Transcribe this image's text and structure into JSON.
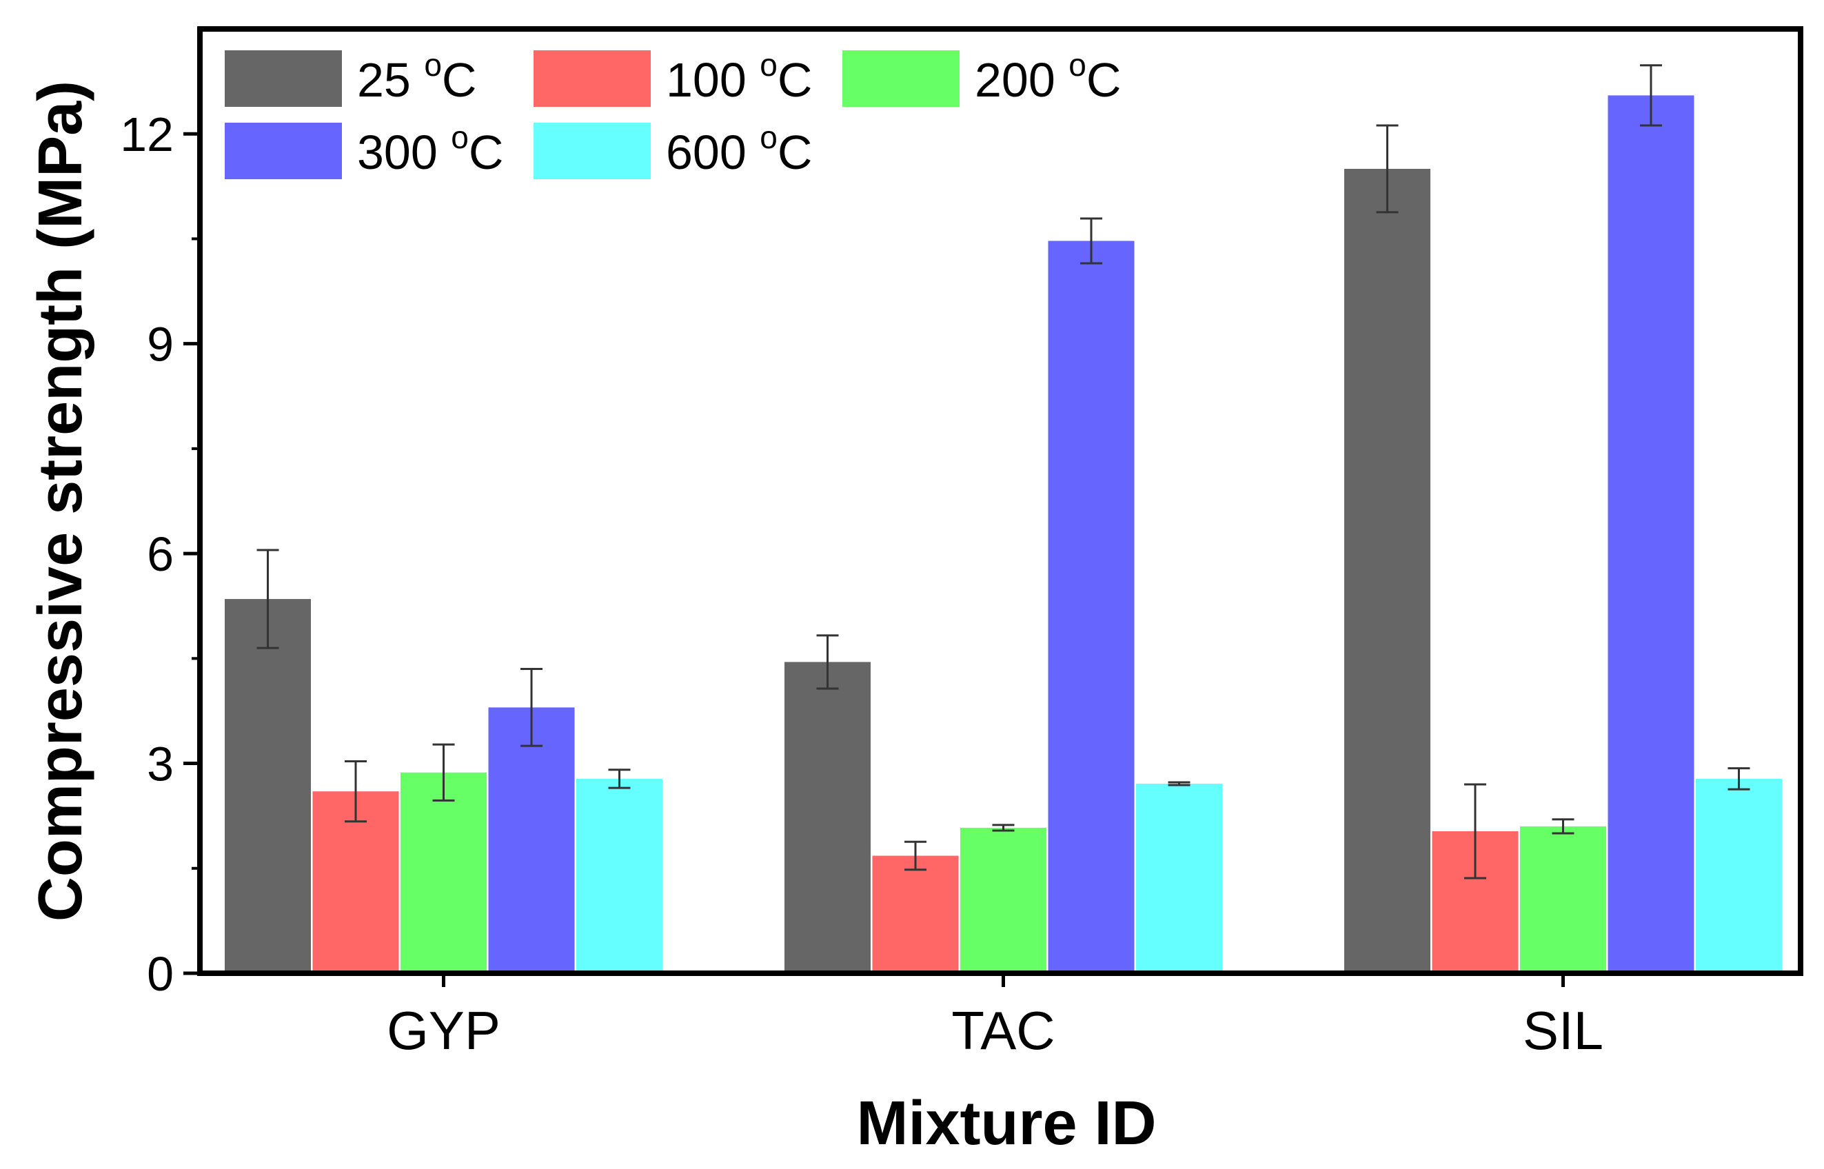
{
  "chart_data": {
    "type": "bar",
    "title": "",
    "xlabel": "Mixture ID",
    "ylabel": "Compressive strength (MPa)",
    "ylim": [
      0,
      13.5
    ],
    "yticks": [
      0,
      3,
      6,
      9,
      12
    ],
    "grid": false,
    "legend_position": "top-left",
    "categories": [
      "GYP",
      "TAC",
      "SIL"
    ],
    "series": [
      {
        "name": "25 °C",
        "label_base": "25 ",
        "label_sup": "o",
        "label_unit": "C",
        "color": "#666666",
        "values": [
          5.35,
          4.45,
          11.5
        ],
        "errors": [
          0.7,
          0.38,
          0.62
        ]
      },
      {
        "name": "100 °C",
        "label_base": "100 ",
        "label_sup": "o",
        "label_unit": "C",
        "color": "#ff6666",
        "values": [
          2.6,
          1.68,
          2.03
        ],
        "errors": [
          0.43,
          0.2,
          0.67
        ]
      },
      {
        "name": "200 °C",
        "label_base": "200 ",
        "label_sup": "o",
        "label_unit": "C",
        "color": "#66ff66",
        "values": [
          2.87,
          2.08,
          2.1
        ],
        "errors": [
          0.4,
          0.04,
          0.1
        ]
      },
      {
        "name": "300 °C",
        "label_base": "300 ",
        "label_sup": "o",
        "label_unit": "C",
        "color": "#6666ff",
        "values": [
          3.8,
          10.47,
          12.55
        ],
        "errors": [
          0.55,
          0.32,
          0.43
        ]
      },
      {
        "name": "600 °C",
        "label_base": "600 ",
        "label_sup": "o",
        "label_unit": "C",
        "color": "#66ffff",
        "values": [
          2.78,
          2.71,
          2.78
        ],
        "errors": [
          0.13,
          0.02,
          0.15
        ]
      }
    ]
  }
}
